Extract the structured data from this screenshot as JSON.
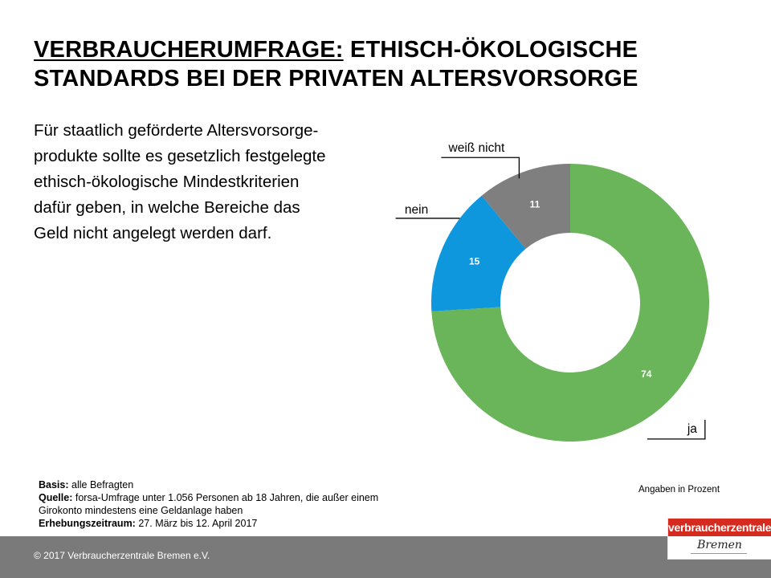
{
  "title": {
    "part1": "VERBRAUCHERUMFRAGE:",
    "part2": "ETHISCH-ÖKOLOGISCHE",
    "line2": "STANDARDS BEI DER PRIVATEN ALTERSVORSORGE"
  },
  "intro_lines": [
    "Für staatlich geförderte Altersvorsorge-",
    "produkte sollte es gesetzlich festgelegte",
    "ethisch-ökologische Mindestkriterien",
    "dafür geben, in welche Bereiche das",
    "Geld nicht angelegt werden darf."
  ],
  "chart_data": {
    "type": "pie",
    "donut": true,
    "categories": [
      "ja",
      "nein",
      "weiß nicht"
    ],
    "values": [
      74,
      15,
      11
    ],
    "colors": [
      "#6ab55a",
      "#0f97dd",
      "#7f7f7f"
    ],
    "value_labels": [
      "74",
      "15",
      "11"
    ],
    "unit_note": "Angaben in Prozent"
  },
  "footnotes": {
    "basis_label": "Basis:",
    "basis_value": "alle Befragten",
    "quelle_label": "Quelle:",
    "quelle_value_line1": "forsa-Umfrage unter 1.056 Personen ab 18 Jahren, die außer einem",
    "quelle_value_line2": "Girokonto mindestens eine Geldanlage haben",
    "zeitraum_label": "Erhebungszeitraum:",
    "zeitraum_value": "27. März bis 12. April 2017"
  },
  "footer": {
    "copyright": "© 2017 Verbraucherzentrale Bremen e.V."
  },
  "logo": {
    "top": "verbraucherzentrale",
    "bottom": "Bremen"
  }
}
